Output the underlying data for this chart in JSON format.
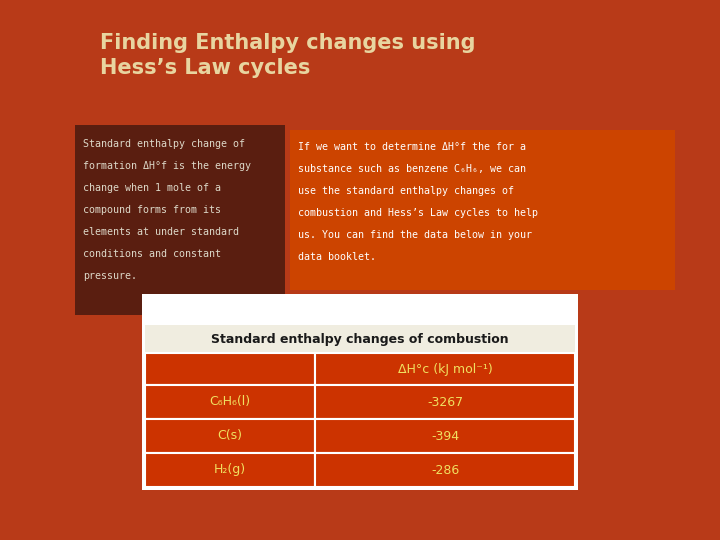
{
  "title_line1": "Finding Enthalpy changes using",
  "title_line2": "Hess’s Law cycles",
  "title_color": "#e8d5a0",
  "bg_color": "#b83a18",
  "left_box_color": "#5a1e10",
  "left_box_text_lines": [
    "Standard enthalpy change of",
    "formation ΔH°f is the energy",
    "change when 1 mole of a",
    "compound forms from its",
    "elements at under standard",
    "conditions and constant",
    "pressure."
  ],
  "right_box_color": "#cc4400",
  "right_box_text_lines": [
    "If we want to determine ΔH°f the for a",
    "substance such as benzene C₆H₆, we can",
    "use the standard enthalpy changes of",
    "combustion and Hess’s Law cycles to help",
    "us. You can find the data below in your",
    "data booklet."
  ],
  "table_header": "Standard enthalpy changes of combustion",
  "table_col2_header": "ΔH°c (kJ mol⁻¹)",
  "table_rows": [
    [
      "C₆H₆(l)",
      "-3267"
    ],
    [
      "C(s)",
      "-394"
    ],
    [
      "H₂(g)",
      "-286"
    ]
  ],
  "table_header_bg": "#f0ede0",
  "table_row_bg": "#cc3300",
  "table_border_color": "#ffffff",
  "text_white": "#ffffff",
  "text_cream": "#e8d5a0",
  "table_text_color": "#f0e060"
}
